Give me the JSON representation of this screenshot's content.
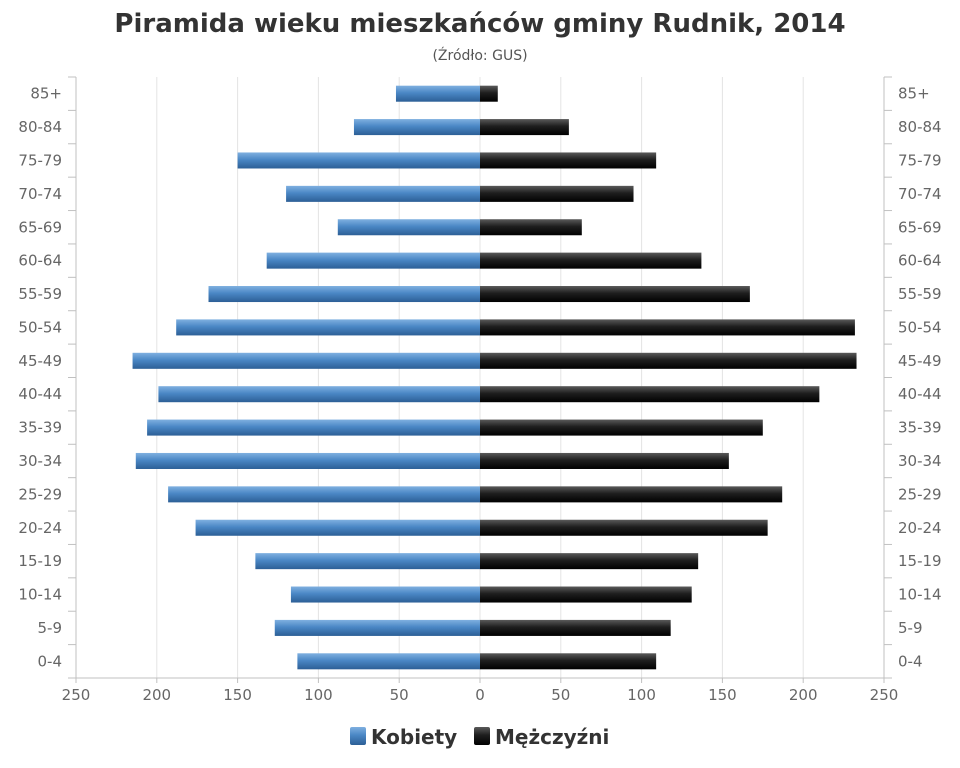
{
  "chart_data": {
    "type": "bar",
    "title": "Piramida wieku mieszkańców gminy Rudnik, 2014",
    "subtitle": "(Źródło: GUS)",
    "categories": [
      "85+",
      "80-84",
      "75-79",
      "70-74",
      "65-69",
      "60-64",
      "55-59",
      "50-54",
      "45-49",
      "40-44",
      "35-39",
      "30-34",
      "25-29",
      "20-24",
      "15-19",
      "10-14",
      "5-9",
      "0-4"
    ],
    "xticks": [
      "250",
      "200",
      "150",
      "100",
      "50",
      "0",
      "50",
      "100",
      "150",
      "200",
      "250"
    ],
    "xlim": [
      -250,
      250
    ],
    "series": [
      {
        "name": "Kobiety",
        "color": "#4a87c5",
        "values": [
          52,
          78,
          150,
          120,
          88,
          132,
          168,
          188,
          215,
          199,
          206,
          213,
          193,
          176,
          139,
          117,
          127,
          113
        ]
      },
      {
        "name": "Mężczyźni",
        "color": "#1a1a1a",
        "values": [
          11,
          55,
          109,
          95,
          63,
          137,
          167,
          232,
          233,
          210,
          175,
          154,
          187,
          178,
          135,
          131,
          118,
          109
        ]
      }
    ],
    "grid": true,
    "legend": "bottom"
  }
}
